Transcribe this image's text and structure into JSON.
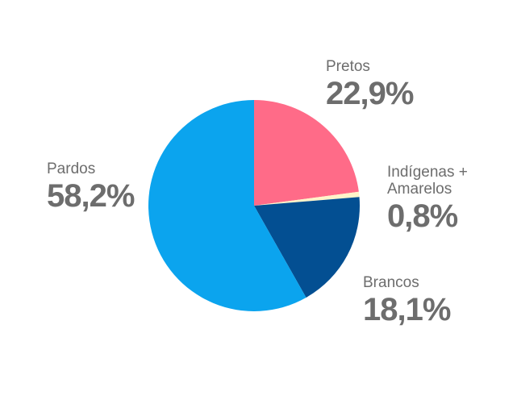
{
  "chart_data": {
    "type": "pie",
    "categories": [
      "Pretos",
      "Indígenas + Amarelos",
      "Brancos",
      "Pardos"
    ],
    "values": [
      22.9,
      0.8,
      18.1,
      58.2
    ],
    "value_labels": [
      "22,9%",
      "0,8%",
      "18,1%",
      "58,2%"
    ],
    "colors": [
      "#ff6b88",
      "#fff4c9",
      "#034f92",
      "#0ba4ee"
    ]
  }
}
